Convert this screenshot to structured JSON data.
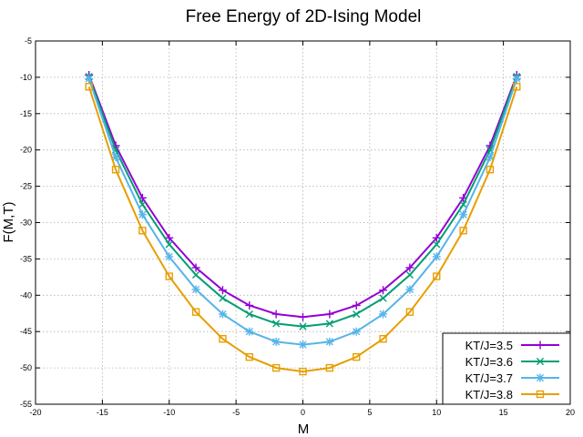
{
  "chart_data": {
    "type": "line",
    "title": "Free Energy of 2D-Ising Model",
    "xlabel": "M",
    "ylabel": "F(M,T)",
    "xlim": [
      -20,
      20
    ],
    "ylim": [
      -55,
      -5
    ],
    "x_ticks": [
      -20,
      -15,
      -10,
      -5,
      0,
      5,
      10,
      15,
      20
    ],
    "y_ticks": [
      -55,
      -50,
      -45,
      -40,
      -35,
      -30,
      -25,
      -20,
      -15,
      -10,
      -5
    ],
    "grid": true,
    "legend_position": "bottom-right",
    "x": [
      -16,
      -14,
      -12,
      -10,
      -8,
      -6,
      -4,
      -2,
      0,
      2,
      4,
      6,
      8,
      10,
      12,
      14,
      16
    ],
    "series": [
      {
        "name": "KT/J=3.5",
        "color": "#9400d3",
        "marker": "plus",
        "values": [
          -9.7,
          -19.4,
          -26.6,
          -32.1,
          -36.2,
          -39.3,
          -41.4,
          -42.6,
          -43.0,
          -42.6,
          -41.4,
          -39.3,
          -36.2,
          -32.1,
          -26.6,
          -19.4,
          -9.7
        ]
      },
      {
        "name": "KT/J=3.6",
        "color": "#009e73",
        "marker": "cross",
        "values": [
          -9.9,
          -20.0,
          -27.5,
          -33.0,
          -37.2,
          -40.4,
          -42.6,
          -43.9,
          -44.3,
          -43.9,
          -42.6,
          -40.4,
          -37.2,
          -33.0,
          -27.5,
          -20.0,
          -9.9
        ]
      },
      {
        "name": "KT/J=3.7",
        "color": "#56b4e9",
        "marker": "star",
        "values": [
          -10.2,
          -21.0,
          -28.9,
          -34.7,
          -39.2,
          -42.6,
          -45.0,
          -46.4,
          -46.8,
          -46.4,
          -45.0,
          -42.6,
          -39.2,
          -34.7,
          -28.9,
          -21.0,
          -10.2
        ]
      },
      {
        "name": "KT/J=3.8",
        "color": "#e69f00",
        "marker": "square",
        "values": [
          -11.3,
          -22.7,
          -31.1,
          -37.4,
          -42.3,
          -46.0,
          -48.5,
          -50.0,
          -50.5,
          -50.0,
          -48.5,
          -46.0,
          -42.3,
          -37.4,
          -31.1,
          -22.7,
          -11.3
        ]
      }
    ]
  }
}
